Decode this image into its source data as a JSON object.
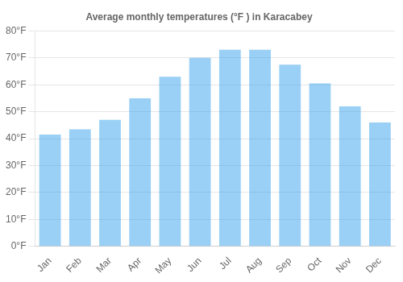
{
  "chart_data": {
    "type": "bar",
    "title": "Average monthly temperatures (°F ) in Karacabey",
    "categories": [
      "Jan",
      "Feb",
      "Mar",
      "Apr",
      "May",
      "Jun",
      "Jul",
      "Aug",
      "Sep",
      "Oct",
      "Nov",
      "Dec"
    ],
    "values": [
      41.5,
      43.5,
      47,
      55,
      63,
      70,
      73,
      73,
      67.5,
      60.5,
      52,
      46
    ],
    "ylim": [
      0,
      80
    ],
    "yticks": [
      {
        "value": 0,
        "label": "0°F"
      },
      {
        "value": 10,
        "label": "10°F"
      },
      {
        "value": 20,
        "label": "20°F"
      },
      {
        "value": 30,
        "label": "30°F"
      },
      {
        "value": 40,
        "label": "40°F"
      },
      {
        "value": 50,
        "label": "50°F"
      },
      {
        "value": 60,
        "label": "60°F"
      },
      {
        "value": 70,
        "label": "70°F"
      },
      {
        "value": 80,
        "label": "80°F"
      }
    ],
    "grid": true
  }
}
